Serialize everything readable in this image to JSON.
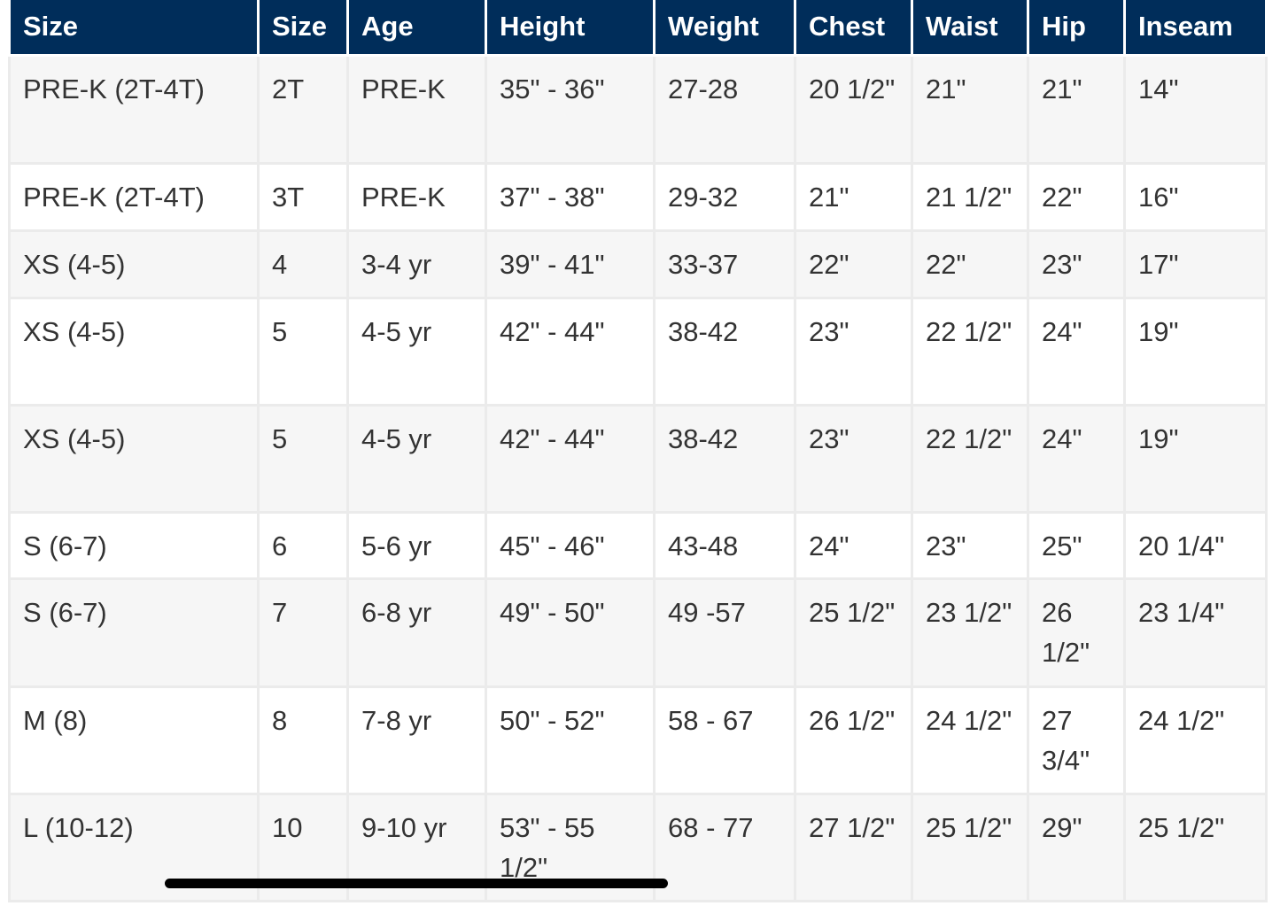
{
  "colors": {
    "header_bg": "#002d5a",
    "header_text": "#ffffff",
    "row_alt": "#f6f6f6",
    "row": "#ffffff",
    "border": "#ebebeb",
    "text": "#333333"
  },
  "table": {
    "headers": [
      "Size",
      "Size",
      "Age",
      "Height",
      "Weight",
      "Chest",
      "Waist",
      "Hip",
      "Inseam"
    ],
    "rows": [
      [
        "PRE-K (2T-4T)",
        "2T",
        "PRE-K",
        "35\" - 36\"",
        "27-28",
        "20 1/2\"",
        "21\"",
        "21\"",
        "14\""
      ],
      [
        "PRE-K (2T-4T)",
        "3T",
        "PRE-K",
        "37\" - 38\"",
        "29-32",
        "21\"",
        "21 1/2\"",
        "22\"",
        "16\""
      ],
      [
        "XS (4-5)",
        "4",
        "3-4 yr",
        "39\" - 41\"",
        "33-37",
        "22\"",
        "22\"",
        "23\"",
        "17\""
      ],
      [
        "XS (4-5)",
        "5",
        "4-5 yr",
        "42\" - 44\"",
        "38-42",
        "23\"",
        "22 1/2\"",
        "24\"",
        "19\""
      ],
      [
        "XS (4-5)",
        "5",
        "4-5 yr",
        "42\" - 44\"",
        "38-42",
        "23\"",
        "22 1/2\"",
        "24\"",
        "19\""
      ],
      [
        "S (6-7)",
        "6",
        "5-6 yr",
        "45\" - 46\"",
        "43-48",
        "24\"",
        "23\"",
        "25\"",
        "20 1/4\""
      ],
      [
        "S (6-7)",
        "7",
        "6-8 yr",
        "49\" - 50\"",
        "49 -57",
        "25 1/2\"",
        "23 1/2\"",
        "26 1/2\"",
        "23 1/4\""
      ],
      [
        "M (8)",
        "8",
        "7-8 yr",
        "50\" - 52\"",
        "58 - 67",
        "26 1/2\"",
        "24 1/2\"",
        "27 3/4\"",
        "24 1/2\""
      ],
      [
        "L (10-12)",
        "10",
        "9-10 yr",
        "53\" - 55 1/2\"",
        "68 - 77",
        "27 1/2\"",
        "25 1/2\"",
        "29\"",
        "25 1/2\""
      ]
    ]
  }
}
